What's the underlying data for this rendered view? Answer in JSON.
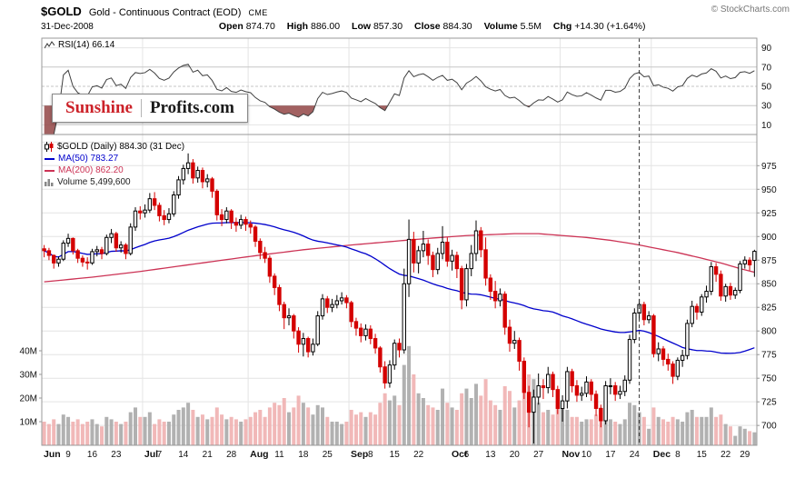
{
  "header": {
    "symbol": "$GOLD",
    "name": "Gold - Continuous Contract (EOD)",
    "exchange": "CME",
    "copyright": "© StockCharts.com",
    "date": "31-Dec-2008",
    "quote": [
      {
        "label": "Open",
        "value": "874.70"
      },
      {
        "label": "High",
        "value": "886.00"
      },
      {
        "label": "Low",
        "value": "857.30"
      },
      {
        "label": "Close",
        "value": "884.30"
      },
      {
        "label": "Volume",
        "value": "5.5M"
      },
      {
        "label": "Chg",
        "value": "+14.30 (+1.64%)"
      }
    ]
  },
  "logo": {
    "part1": "Sunshine",
    "part2": "Profits.com"
  },
  "rsi_panel": {
    "legend": "RSI(14) 66.14"
  },
  "main_panel": {
    "legend_symbol": "$GOLD (Daily) 884.30 (31 Dec)",
    "legend_ma50": "MA(50) 783.27",
    "legend_ma200": "MA(200) 862.20",
    "legend_volume": "Volume 5,499,600"
  },
  "colors": {
    "candle_up": "#000000",
    "candle_down": "#d40000",
    "ma50_line": "#0000cc",
    "ma200_line": "#cc3355",
    "volume_up": "#a9a9a9",
    "volume_down": "#f0b0b0",
    "rsi_line": "#404040",
    "rsi_overbought_fill": "#909090",
    "rsi_oversold_fill": "#8b3a3a",
    "grid_light": "#e4e4e4",
    "grid_mid": "#c6c6c6",
    "panel_border": "#999999",
    "annotation_line": "#333333"
  },
  "chart_data": {
    "type": "candlestick",
    "overlays": [
      "MA(50)",
      "MA(200)",
      "Volume"
    ],
    "indicators": [
      "RSI(14)"
    ],
    "last_close": 884.3,
    "ma50_last": 783.27,
    "ma200_last": 862.2,
    "rsi_last": 66.14,
    "volume_last": 5499600,
    "price_range": [
      679,
      1008
    ],
    "rsi_bands": {
      "overbought": 70,
      "oversold": 30
    },
    "price_ticks": [
      975,
      950,
      925,
      900,
      875,
      850,
      825,
      800,
      775,
      750,
      725,
      700
    ],
    "rsi_ticks": [
      90,
      70,
      50,
      30,
      10
    ],
    "volume_ticks": [
      {
        "value": 40,
        "label": "40M"
      },
      {
        "value": 30,
        "label": "30M"
      },
      {
        "value": 20,
        "label": "20M"
      },
      {
        "value": 10,
        "label": "10M"
      }
    ],
    "month_start_indices": [
      21,
      43,
      64,
      85,
      108,
      127
    ],
    "dashed_vline_index": 124,
    "x_ticks": [
      {
        "i": 0,
        "label": "Jun",
        "bold": true
      },
      {
        "i": 5,
        "label": "9"
      },
      {
        "i": 10,
        "label": "16"
      },
      {
        "i": 15,
        "label": "23"
      },
      {
        "i": 21,
        "label": "Jul",
        "bold": true
      },
      {
        "i": 24,
        "label": "7"
      },
      {
        "i": 29,
        "label": "14"
      },
      {
        "i": 34,
        "label": "21"
      },
      {
        "i": 39,
        "label": "28"
      },
      {
        "i": 43,
        "label": "Aug",
        "bold": true
      },
      {
        "i": 49,
        "label": "11"
      },
      {
        "i": 54,
        "label": "18"
      },
      {
        "i": 59,
        "label": "25"
      },
      {
        "i": 64,
        "label": "Sep",
        "bold": true
      },
      {
        "i": 68,
        "label": "8"
      },
      {
        "i": 73,
        "label": "15"
      },
      {
        "i": 78,
        "label": "22"
      },
      {
        "i": 85,
        "label": "Oct",
        "bold": true
      },
      {
        "i": 88,
        "label": "6"
      },
      {
        "i": 93,
        "label": "13"
      },
      {
        "i": 98,
        "label": "20"
      },
      {
        "i": 103,
        "label": "27"
      },
      {
        "i": 108,
        "label": "Nov",
        "bold": true
      },
      {
        "i": 113,
        "label": "10"
      },
      {
        "i": 118,
        "label": "17"
      },
      {
        "i": 123,
        "label": "24"
      },
      {
        "i": 127,
        "label": "Dec",
        "bold": true
      },
      {
        "i": 132,
        "label": "8"
      },
      {
        "i": 137,
        "label": "15"
      },
      {
        "i": 142,
        "label": "22"
      },
      {
        "i": 146,
        "label": "29"
      }
    ],
    "ma200_points": [
      [
        0,
        852
      ],
      [
        10,
        857
      ],
      [
        20,
        863
      ],
      [
        30,
        870
      ],
      [
        43,
        879
      ],
      [
        54,
        886
      ],
      [
        64,
        891
      ],
      [
        73,
        895
      ],
      [
        80,
        898
      ],
      [
        88,
        901
      ],
      [
        93,
        902
      ],
      [
        98,
        903
      ],
      [
        103,
        903
      ],
      [
        108,
        901
      ],
      [
        113,
        899
      ],
      [
        118,
        896
      ],
      [
        123,
        892
      ],
      [
        127,
        888
      ],
      [
        132,
        883
      ],
      [
        137,
        877
      ],
      [
        141,
        872
      ],
      [
        145,
        866
      ],
      [
        148,
        862.2
      ]
    ],
    "candles": [
      [
        887,
        891,
        878,
        885,
        10
      ],
      [
        885,
        888,
        875,
        880,
        9
      ],
      [
        880,
        881,
        866,
        872,
        11
      ],
      [
        872,
        879,
        868,
        876,
        9
      ],
      [
        876,
        896,
        874,
        893,
        13
      ],
      [
        893,
        903,
        889,
        898,
        12
      ],
      [
        898,
        899,
        881,
        885,
        10
      ],
      [
        885,
        887,
        872,
        877,
        11
      ],
      [
        877,
        880,
        868,
        873,
        9
      ],
      [
        873,
        878,
        865,
        872,
        10
      ],
      [
        872,
        887,
        870,
        884,
        11
      ],
      [
        884,
        890,
        879,
        886,
        9
      ],
      [
        886,
        889,
        876,
        882,
        8
      ],
      [
        882,
        902,
        880,
        899,
        12
      ],
      [
        899,
        908,
        893,
        903,
        11
      ],
      [
        903,
        905,
        884,
        888,
        10
      ],
      [
        888,
        895,
        883,
        891,
        9
      ],
      [
        891,
        893,
        876,
        882,
        10
      ],
      [
        882,
        914,
        880,
        910,
        14
      ],
      [
        910,
        931,
        906,
        927,
        16
      ],
      [
        927,
        932,
        918,
        925,
        12
      ],
      [
        925,
        934,
        920,
        928,
        12
      ],
      [
        928,
        946,
        925,
        940,
        14
      ],
      [
        940,
        947,
        928,
        933,
        9
      ],
      [
        933,
        936,
        916,
        922,
        11
      ],
      [
        922,
        928,
        912,
        918,
        10
      ],
      [
        918,
        930,
        914,
        924,
        10
      ],
      [
        924,
        948,
        921,
        944,
        13
      ],
      [
        944,
        964,
        940,
        960,
        15
      ],
      [
        960,
        976,
        955,
        972,
        16
      ],
      [
        972,
        988,
        966,
        978,
        18
      ],
      [
        978,
        982,
        956,
        962,
        15
      ],
      [
        962,
        974,
        957,
        970,
        12
      ],
      [
        970,
        973,
        951,
        958,
        13
      ],
      [
        958,
        966,
        952,
        961,
        11
      ],
      [
        961,
        963,
        941,
        948,
        12
      ],
      [
        948,
        950,
        917,
        923,
        16
      ],
      [
        923,
        929,
        911,
        918,
        13
      ],
      [
        918,
        931,
        914,
        927,
        11
      ],
      [
        927,
        929,
        908,
        915,
        12
      ],
      [
        915,
        920,
        905,
        912,
        11
      ],
      [
        912,
        923,
        908,
        918,
        10
      ],
      [
        918,
        921,
        906,
        913,
        11
      ],
      [
        913,
        917,
        903,
        910,
        12
      ],
      [
        910,
        912,
        889,
        895,
        14
      ],
      [
        895,
        898,
        876,
        883,
        15
      ],
      [
        883,
        889,
        872,
        877,
        12
      ],
      [
        877,
        880,
        851,
        858,
        16
      ],
      [
        858,
        861,
        838,
        846,
        18
      ],
      [
        846,
        849,
        821,
        828,
        17
      ],
      [
        828,
        831,
        802,
        814,
        20
      ],
      [
        814,
        824,
        806,
        816,
        14
      ],
      [
        816,
        818,
        792,
        800,
        16
      ],
      [
        800,
        804,
        777,
        786,
        21
      ],
      [
        786,
        798,
        773,
        792,
        18
      ],
      [
        792,
        794,
        772,
        778,
        16
      ],
      [
        778,
        792,
        774,
        786,
        13
      ],
      [
        786,
        821,
        784,
        816,
        17
      ],
      [
        816,
        839,
        812,
        834,
        16
      ],
      [
        834,
        837,
        819,
        825,
        12
      ],
      [
        825,
        834,
        820,
        828,
        10
      ],
      [
        828,
        838,
        824,
        832,
        10
      ],
      [
        832,
        841,
        828,
        835,
        9
      ],
      [
        835,
        838,
        824,
        830,
        10
      ],
      [
        830,
        832,
        804,
        810,
        15
      ],
      [
        810,
        814,
        795,
        803,
        13
      ],
      [
        803,
        808,
        788,
        795,
        14
      ],
      [
        795,
        807,
        790,
        802,
        12
      ],
      [
        802,
        806,
        786,
        792,
        14
      ],
      [
        792,
        797,
        776,
        782,
        13
      ],
      [
        782,
        784,
        756,
        762,
        18
      ],
      [
        762,
        768,
        739,
        745,
        22
      ],
      [
        745,
        769,
        740,
        764,
        19
      ],
      [
        764,
        791,
        759,
        787,
        21
      ],
      [
        787,
        792,
        772,
        780,
        17
      ],
      [
        780,
        866,
        776,
        850,
        34
      ],
      [
        850,
        918,
        836,
        897,
        42
      ],
      [
        897,
        905,
        862,
        872,
        30
      ],
      [
        872,
        890,
        861,
        885,
        22
      ],
      [
        885,
        906,
        878,
        892,
        20
      ],
      [
        892,
        897,
        870,
        880,
        17
      ],
      [
        880,
        884,
        857,
        865,
        16
      ],
      [
        865,
        888,
        860,
        882,
        15
      ],
      [
        882,
        911,
        876,
        894,
        24
      ],
      [
        894,
        899,
        868,
        874,
        18
      ],
      [
        874,
        886,
        864,
        880,
        16
      ],
      [
        880,
        884,
        856,
        866,
        15
      ],
      [
        866,
        869,
        823,
        833,
        22
      ],
      [
        833,
        871,
        826,
        866,
        24
      ],
      [
        866,
        891,
        858,
        882,
        20
      ],
      [
        882,
        917,
        874,
        906,
        26
      ],
      [
        906,
        910,
        878,
        886,
        21
      ],
      [
        886,
        899,
        848,
        856,
        28
      ],
      [
        856,
        860,
        833,
        842,
        19
      ],
      [
        842,
        853,
        824,
        832,
        17
      ],
      [
        832,
        845,
        826,
        839,
        15
      ],
      [
        839,
        842,
        796,
        804,
        25
      ],
      [
        804,
        812,
        778,
        787,
        23
      ],
      [
        787,
        800,
        781,
        790,
        16
      ],
      [
        790,
        793,
        758,
        768,
        19
      ],
      [
        768,
        772,
        728,
        735,
        26
      ],
      [
        735,
        742,
        698,
        714,
        30
      ],
      [
        714,
        738,
        681,
        730,
        28
      ],
      [
        730,
        755,
        722,
        742,
        18
      ],
      [
        742,
        749,
        728,
        740,
        14
      ],
      [
        740,
        762,
        734,
        754,
        15
      ],
      [
        754,
        757,
        730,
        738,
        13
      ],
      [
        738,
        742,
        712,
        718,
        17
      ],
      [
        718,
        732,
        704,
        726,
        16
      ],
      [
        726,
        762,
        718,
        757,
        15
      ],
      [
        757,
        760,
        735,
        742,
        12
      ],
      [
        742,
        748,
        725,
        732,
        12
      ],
      [
        732,
        741,
        726,
        734,
        10
      ],
      [
        734,
        752,
        730,
        746,
        11
      ],
      [
        746,
        749,
        726,
        733,
        11
      ],
      [
        733,
        737,
        710,
        718,
        13
      ],
      [
        718,
        722,
        698,
        705,
        16
      ],
      [
        705,
        747,
        701,
        742,
        17
      ],
      [
        742,
        750,
        733,
        742,
        11
      ],
      [
        742,
        746,
        726,
        733,
        10
      ],
      [
        733,
        742,
        728,
        736,
        9
      ],
      [
        736,
        753,
        731,
        748,
        11
      ],
      [
        748,
        796,
        744,
        791,
        18
      ],
      [
        791,
        824,
        787,
        819,
        17
      ],
      [
        819,
        834,
        812,
        828,
        14
      ],
      [
        828,
        831,
        806,
        812,
        12
      ],
      [
        812,
        821,
        808,
        816,
        7
      ],
      [
        816,
        818,
        772,
        776,
        16
      ],
      [
        776,
        788,
        768,
        781,
        12
      ],
      [
        781,
        784,
        763,
        770,
        11
      ],
      [
        770,
        776,
        758,
        765,
        10
      ],
      [
        765,
        768,
        744,
        752,
        12
      ],
      [
        752,
        772,
        748,
        769,
        11
      ],
      [
        769,
        780,
        762,
        774,
        10
      ],
      [
        774,
        812,
        770,
        808,
        14
      ],
      [
        808,
        832,
        804,
        826,
        15
      ],
      [
        826,
        829,
        812,
        820,
        12
      ],
      [
        820,
        839,
        816,
        836,
        12
      ],
      [
        836,
        848,
        830,
        842,
        12
      ],
      [
        842,
        873,
        838,
        868,
        16
      ],
      [
        868,
        872,
        852,
        860,
        12
      ],
      [
        860,
        864,
        832,
        837,
        13
      ],
      [
        837,
        850,
        831,
        847,
        9
      ],
      [
        847,
        851,
        833,
        838,
        8
      ],
      [
        838,
        846,
        834,
        843,
        4
      ],
      [
        843,
        874,
        840,
        871,
        8
      ],
      [
        871,
        879,
        866,
        875,
        7
      ],
      [
        875,
        878,
        864,
        870,
        6
      ],
      [
        874.7,
        886,
        857.3,
        884.3,
        5.5
      ]
    ]
  }
}
